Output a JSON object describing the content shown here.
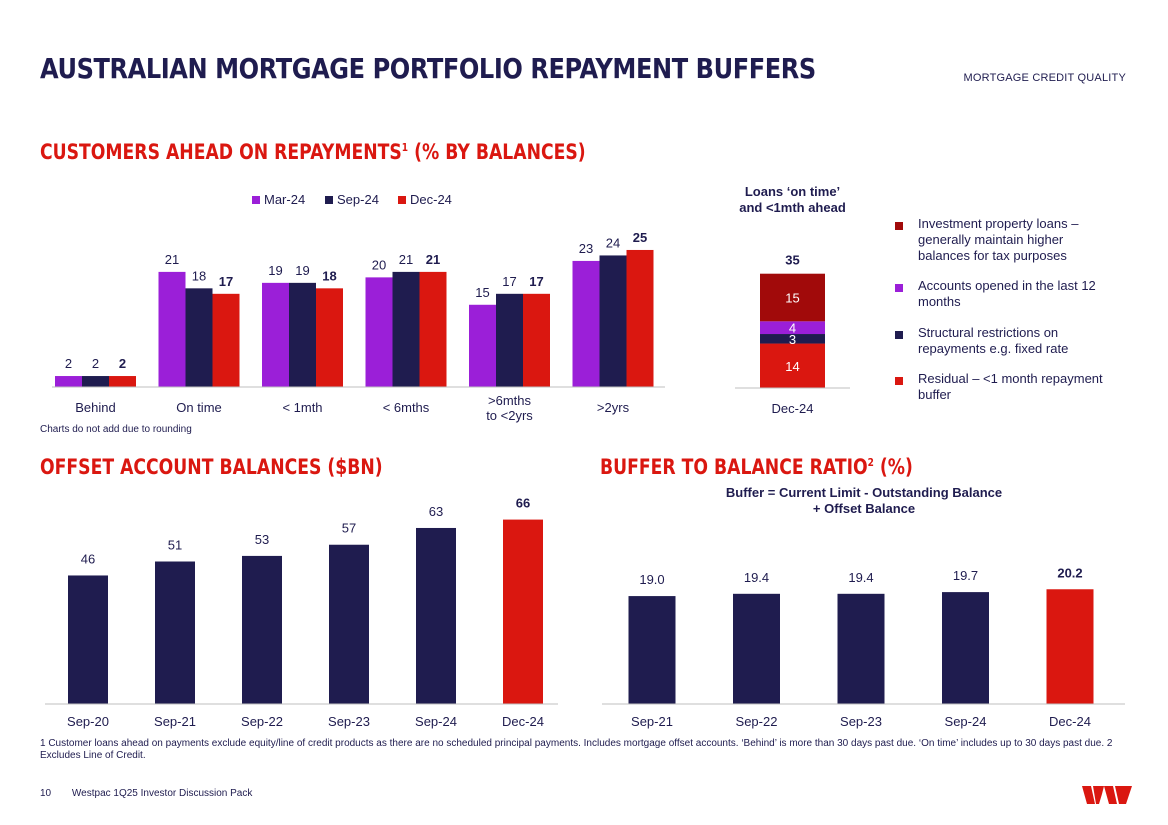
{
  "header": {
    "title": "AUSTRALIAN MORTGAGE PORTFOLIO REPAYMENT BUFFERS",
    "section": "MORTGAGE CREDIT QUALITY"
  },
  "repayments": {
    "heading": "CUSTOMERS AHEAD ON REPAYMENTS",
    "heading_sup": "1",
    "heading_tail": " (% BY BALANCES)",
    "note": "Charts do not add due to rounding"
  },
  "offset": {
    "heading": "OFFSET ACCOUNT BALANCES ($BN)"
  },
  "ratio": {
    "heading": "BUFFER TO BALANCE RATIO",
    "heading_sup": "2",
    "heading_tail": " (%)",
    "subtitle_line1": "Buffer = Current Limit - Outstanding Balance",
    "subtitle_line2": "+ Offset Balance"
  },
  "ontime": {
    "title_line1": "Loans ‘on time’",
    "title_line2": "and <1mth ahead"
  },
  "legend_items": [
    {
      "label": "Investment property loans – generally maintain higher balances for tax purposes",
      "color": "#a10a0a"
    },
    {
      "label": "Accounts opened in the last 12 months",
      "color": "#9b1fd8"
    },
    {
      "label": "Structural restrictions on repayments e.g. fixed rate",
      "color": "#1f1c4f"
    },
    {
      "label": "Residual – <1 month repayment buffer",
      "color": "#da1710"
    }
  ],
  "chart_data": [
    {
      "id": "customers_ahead",
      "type": "bar",
      "title": "Customers ahead on repayments (% by balances)",
      "categories": [
        "Behind",
        "On time",
        "< 1mth",
        "< 6mths",
        ">6mths|to <2yrs",
        ">2yrs"
      ],
      "series": [
        {
          "name": "Mar-24",
          "color": "#9b1fd8",
          "values": [
            2,
            21,
            19,
            20,
            15,
            23
          ]
        },
        {
          "name": "Sep-24",
          "color": "#1f1c4f",
          "values": [
            2,
            18,
            19,
            21,
            17,
            24
          ]
        },
        {
          "name": "Dec-24",
          "color": "#da1710",
          "values": [
            2,
            17,
            18,
            21,
            17,
            25
          ]
        }
      ],
      "ylim": [
        0,
        27
      ],
      "legend": "top-center"
    },
    {
      "id": "on_time_stack",
      "type": "bar",
      "stacked": true,
      "categories": [
        "Dec-24"
      ],
      "total": 35,
      "series": [
        {
          "name": "Residual – <1 month repayment buffer",
          "color": "#da1710",
          "values": [
            14
          ]
        },
        {
          "name": "Structural restrictions on repayments e.g. fixed rate",
          "color": "#1f1c4f",
          "values": [
            3
          ]
        },
        {
          "name": "Accounts opened in the last 12 months",
          "color": "#9b1fd8",
          "values": [
            4
          ]
        },
        {
          "name": "Investment property loans – generally maintain higher balances for tax purposes",
          "color": "#a10a0a",
          "values": [
            15
          ]
        }
      ],
      "ylim": [
        0,
        40
      ]
    },
    {
      "id": "offset_balances",
      "type": "bar",
      "title": "Offset account balances ($bn)",
      "categories": [
        "Sep-20",
        "Sep-21",
        "Sep-22",
        "Sep-23",
        "Sep-24",
        "Dec-24"
      ],
      "values": [
        46,
        51,
        53,
        57,
        63,
        66
      ],
      "colors": [
        "#1f1c4f",
        "#1f1c4f",
        "#1f1c4f",
        "#1f1c4f",
        "#1f1c4f",
        "#da1710"
      ],
      "ylim": [
        0,
        68
      ]
    },
    {
      "id": "buffer_ratio",
      "type": "bar",
      "title": "Buffer to balance ratio (%)",
      "categories": [
        "Sep-21",
        "Sep-22",
        "Sep-23",
        "Sep-24",
        "Dec-24"
      ],
      "values": [
        19.0,
        19.4,
        19.4,
        19.7,
        20.2
      ],
      "labels": [
        "19.0",
        "19.4",
        "19.4",
        "19.7",
        "20.2"
      ],
      "colors": [
        "#1f1c4f",
        "#1f1c4f",
        "#1f1c4f",
        "#1f1c4f",
        "#da1710"
      ],
      "ylim": [
        0,
        25
      ]
    }
  ],
  "footnote": "1 Customer loans ahead on payments exclude equity/line of credit products as there are no scheduled principal payments. Includes mortgage offset accounts. ‘Behind’ is more than 30 days past due. ‘On time’ includes up to 30 days past due. 2 Excludes Line of Credit.",
  "footer": {
    "page": "10",
    "doc": "Westpac 1Q25 Investor Discussion Pack"
  },
  "logo": {
    "text": "W",
    "color": "#da1710"
  }
}
